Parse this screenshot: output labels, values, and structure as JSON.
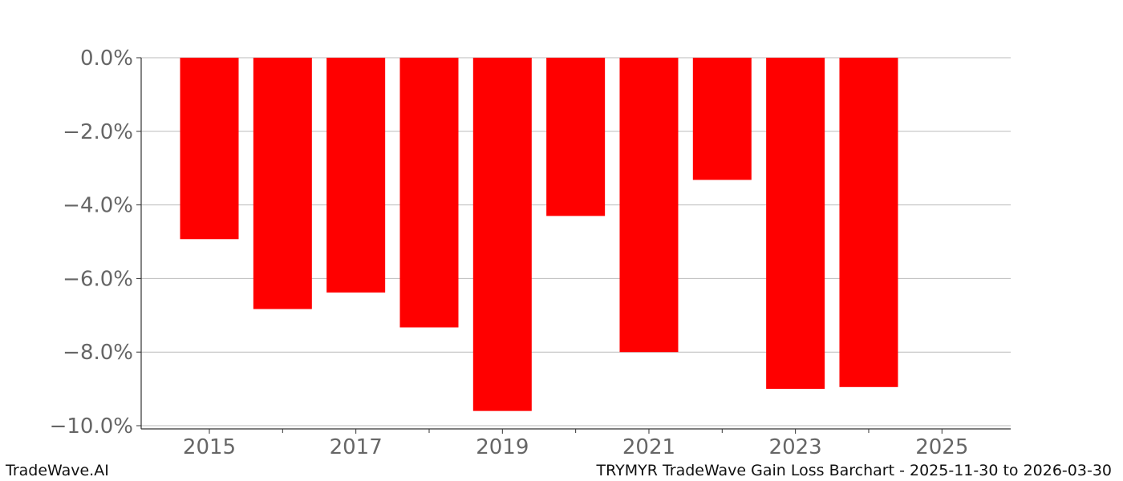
{
  "footer": {
    "brand": "TradeWave.AI",
    "caption": "TRYMYR TradeWave Gain Loss Barchart - 2025-11-30 to 2026-03-30"
  },
  "colors": {
    "bar": "#ff0000",
    "grid": "#bbbbbb",
    "axis": "#333333",
    "tick_text": "#666666"
  },
  "chart_data": {
    "type": "bar",
    "x": [
      2015,
      2016,
      2017,
      2018,
      2019,
      2020,
      2021,
      2022,
      2023,
      2024
    ],
    "values": [
      -4.93,
      -6.83,
      -6.38,
      -7.33,
      -9.6,
      -4.3,
      -8.0,
      -3.32,
      -9.0,
      -8.95
    ],
    "xlim": [
      2014,
      2026
    ],
    "ylim": [
      -10.0,
      0.0
    ],
    "x_ticks": [
      2015,
      2017,
      2019,
      2021,
      2023,
      2025
    ],
    "x_tick_labels": [
      "2015",
      "2017",
      "2019",
      "2021",
      "2023",
      "2025"
    ],
    "y_ticks": [
      0,
      -2,
      -4,
      -6,
      -8,
      -10
    ],
    "y_tick_labels": [
      "0.0%",
      "−2.0%",
      "−4.0%",
      "−6.0%",
      "−8.0%",
      "−10.0%"
    ],
    "grid": true,
    "title": "",
    "xlabel": "",
    "ylabel": ""
  }
}
